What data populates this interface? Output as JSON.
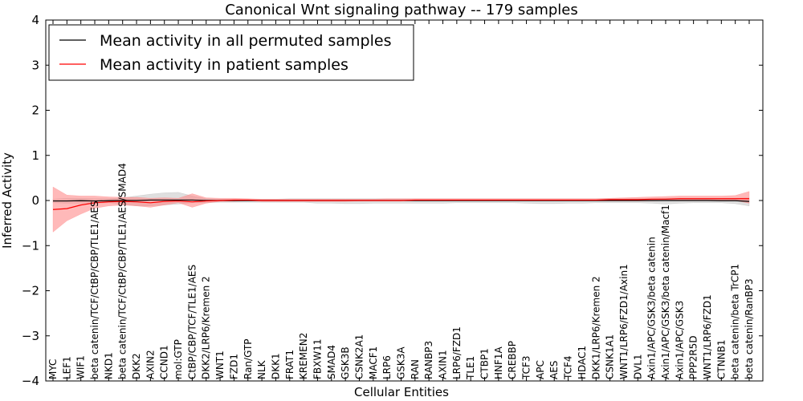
{
  "chart_data": {
    "type": "line",
    "title": "Canonical Wnt signaling pathway -- 179 samples",
    "xlabel": "Cellular Entities",
    "ylabel": "Inferred Activity",
    "ylim": [
      -4,
      4
    ],
    "yticks": [
      -4,
      -3,
      -2,
      -1,
      0,
      1,
      2,
      3,
      4
    ],
    "ytick_labels": [
      "−4",
      "−3",
      "−2",
      "−1",
      "0",
      "1",
      "2",
      "3",
      "4"
    ],
    "grid": false,
    "legend_position": "top-left",
    "categories": [
      "MYC",
      "LEF1",
      "WIF1",
      "beta catenin/TCF/CtBP/CBP/TLE1/AES",
      "NKD1",
      "beta catenin/TCF/CtBP/CBP/TLE1/AES/SMAD4",
      "DKK2",
      "AXIN2",
      "CCND1",
      "mol:GTP",
      "CtBP/CBP/TCF/TLE1/AES",
      "DKK2/LRP6/Kremen 2",
      "WNT1",
      "FZD1",
      "Ran/GTP",
      "NLK",
      "DKK1",
      "FRAT1",
      "KREMEN2",
      "FBXW11",
      "SMAD4",
      "GSK3B",
      "CSNK2A1",
      "MACF1",
      "LRP6",
      "GSK3A",
      "RAN",
      "RANBP3",
      "AXIN1",
      "LRP6/FZD1",
      "TLE1",
      "CTBP1",
      "HNF1A",
      "CREBBP",
      "TCF3",
      "APC",
      "AES",
      "TCF4",
      "HDAC1",
      "DKK1/LRP6/Kremen 2",
      "CSNK1A1",
      "WNT1/LRP6/FZD1/Axin1",
      "DVL1",
      "Axin1/APC/GSK3/beta catenin",
      "Axin1/APC/GSK3/beta catenin/Macf1",
      "Axin1/APC/GSK3",
      "PPP2R5D",
      "WNT1/LRP6/FZD1",
      "CTNNB1",
      "beta catenin/beta TrCP1",
      "beta catenin/RanBP3"
    ],
    "series": [
      {
        "name": "Mean activity in all permuted samples",
        "color": "#000000",
        "band_color": "#b0b0b0",
        "values": [
          -0.01,
          -0.01,
          -0.005,
          -0.01,
          -0.005,
          0,
          0,
          0.01,
          0.01,
          0.01,
          0.01,
          0,
          0,
          0,
          0,
          0,
          0,
          0,
          0,
          0,
          0,
          0,
          0,
          0,
          0,
          0,
          0,
          0,
          0,
          0,
          0,
          0,
          0,
          0,
          0,
          0,
          0,
          0,
          0,
          0,
          0,
          0,
          0,
          0,
          0,
          0,
          0,
          0,
          -0.005,
          -0.005,
          -0.02
        ],
        "lower": [
          -0.05,
          -0.06,
          -0.06,
          -0.06,
          -0.05,
          -0.08,
          -0.12,
          -0.12,
          -0.1,
          -0.08,
          -0.05,
          -0.05,
          -0.04,
          -0.04,
          -0.04,
          -0.04,
          -0.04,
          -0.04,
          -0.04,
          -0.06,
          -0.06,
          -0.07,
          -0.07,
          -0.06,
          -0.06,
          -0.06,
          -0.06,
          -0.06,
          -0.06,
          -0.05,
          -0.05,
          -0.05,
          -0.05,
          -0.05,
          -0.06,
          -0.07,
          -0.07,
          -0.06,
          -0.06,
          -0.05,
          -0.05,
          -0.05,
          -0.05,
          -0.06,
          -0.08,
          -0.06,
          -0.05,
          -0.05,
          -0.05,
          -0.07,
          -0.12
        ],
        "upper": [
          0.03,
          0.05,
          0.05,
          0.04,
          0.04,
          0.06,
          0.1,
          0.14,
          0.17,
          0.18,
          0.1,
          0.04,
          0.03,
          0.03,
          0.03,
          0.03,
          0.03,
          0.04,
          0.04,
          0.04,
          0.04,
          0.04,
          0.04,
          0.04,
          0.04,
          0.04,
          0.04,
          0.04,
          0.04,
          0.04,
          0.04,
          0.04,
          0.04,
          0.04,
          0.04,
          0.04,
          0.04,
          0.04,
          0.04,
          0.04,
          0.04,
          0.04,
          0.04,
          0.04,
          0.05,
          0.05,
          0.04,
          0.04,
          0.04,
          0.05,
          0.06
        ]
      },
      {
        "name": "Mean activity in patient samples",
        "color": "#ff0000",
        "band_color": "#ff8080",
        "values": [
          -0.2,
          -0.18,
          -0.1,
          -0.05,
          -0.03,
          -0.02,
          -0.03,
          -0.05,
          -0.02,
          -0.01,
          -0.03,
          -0.01,
          0,
          0.01,
          0.01,
          0,
          0,
          0,
          0,
          0,
          0,
          0,
          0,
          0,
          0,
          0,
          0.01,
          0.01,
          0.01,
          0.01,
          0.01,
          0.01,
          0.01,
          0.01,
          0.01,
          0.01,
          0.01,
          0.01,
          0.01,
          0.01,
          0.02,
          0.02,
          0.02,
          0.03,
          0.03,
          0.04,
          0.04,
          0.04,
          0.04,
          0.04,
          0.04
        ],
        "lower": [
          -0.7,
          -0.45,
          -0.3,
          -0.17,
          -0.12,
          -0.1,
          -0.12,
          -0.15,
          -0.1,
          -0.05,
          -0.15,
          -0.06,
          -0.02,
          -0.02,
          -0.01,
          -0.02,
          -0.02,
          -0.02,
          -0.02,
          -0.02,
          -0.02,
          -0.02,
          -0.01,
          -0.01,
          -0.01,
          -0.01,
          -0.01,
          -0.01,
          -0.01,
          -0.01,
          -0.01,
          -0.01,
          -0.01,
          -0.01,
          -0.01,
          -0.01,
          -0.01,
          -0.01,
          -0.01,
          -0.01,
          -0.01,
          -0.01,
          -0.01,
          -0.01,
          0,
          0,
          0,
          0,
          0,
          0,
          -0.06
        ],
        "upper": [
          0.3,
          0.12,
          0.1,
          0.1,
          0.08,
          0.07,
          0.07,
          0.05,
          0.06,
          0.05,
          0.15,
          0.06,
          0.05,
          0.05,
          0.04,
          0.03,
          0.03,
          0.03,
          0.03,
          0.03,
          0.03,
          0.03,
          0.03,
          0.03,
          0.04,
          0.04,
          0.04,
          0.04,
          0.04,
          0.04,
          0.04,
          0.04,
          0.04,
          0.04,
          0.04,
          0.04,
          0.04,
          0.04,
          0.04,
          0.04,
          0.05,
          0.06,
          0.07,
          0.08,
          0.09,
          0.1,
          0.1,
          0.1,
          0.1,
          0.11,
          0.2
        ]
      }
    ]
  }
}
